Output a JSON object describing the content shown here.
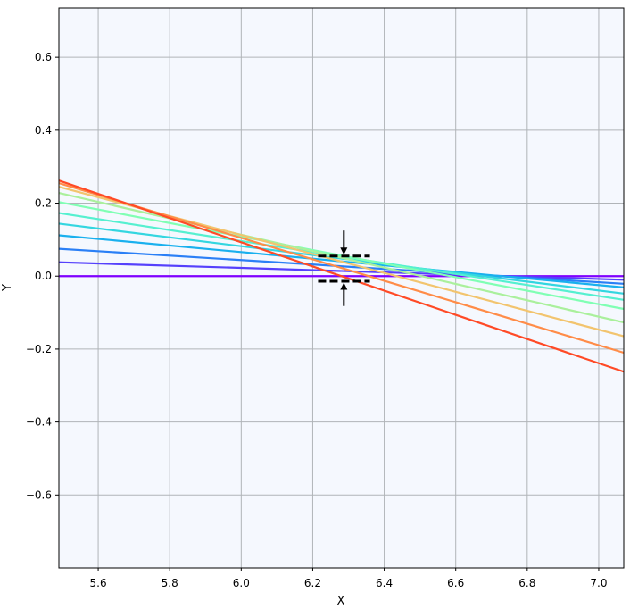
{
  "chart_data": {
    "type": "line",
    "title": "",
    "xlabel": "X",
    "ylabel": "Y",
    "xlim": [
      5.49,
      7.07
    ],
    "ylim": [
      -0.8,
      0.735
    ],
    "xticks": [
      5.6,
      5.8,
      6.0,
      6.2,
      6.4,
      6.6,
      6.8,
      7.0
    ],
    "xtick_labels": [
      "5.6",
      "5.8",
      "6.0",
      "6.2",
      "6.4",
      "6.6",
      "6.8",
      "7.0"
    ],
    "yticks": [
      -0.6,
      -0.4,
      -0.2,
      0.0,
      0.2,
      0.4,
      0.6
    ],
    "ytick_labels": [
      "−0.6",
      "−0.4",
      "−0.2",
      "0.0",
      "0.2",
      "0.4",
      "0.6"
    ],
    "grid": true,
    "background_color": "#f5f8fe",
    "grid_color": "#b0b4b8",
    "series": [
      {
        "color": "#7f00ff",
        "points": [
          [
            5.49,
            0.0
          ],
          [
            7.07,
            0.0
          ]
        ]
      },
      {
        "color": "#5540fc",
        "points": [
          [
            5.49,
            0.038
          ],
          [
            7.07,
            -0.01
          ]
        ]
      },
      {
        "color": "#2a7ff6",
        "points": [
          [
            5.49,
            0.075
          ],
          [
            7.07,
            -0.021
          ]
        ]
      },
      {
        "color": "#19b0ee",
        "points": [
          [
            5.49,
            0.112
          ],
          [
            7.07,
            -0.031
          ]
        ]
      },
      {
        "color": "#33d6e0",
        "points": [
          [
            5.49,
            0.144
          ],
          [
            7.07,
            -0.048
          ]
        ]
      },
      {
        "color": "#55f0d0",
        "points": [
          [
            5.49,
            0.173
          ],
          [
            7.07,
            -0.065
          ]
        ]
      },
      {
        "color": "#80ffb4",
        "points": [
          [
            5.49,
            0.203
          ],
          [
            7.07,
            -0.09
          ]
        ]
      },
      {
        "color": "#aaf09c",
        "points": [
          [
            5.49,
            0.228
          ],
          [
            7.07,
            -0.127
          ]
        ]
      },
      {
        "color": "#f2c46e",
        "points": [
          [
            5.49,
            0.245
          ],
          [
            7.07,
            -0.165
          ]
        ]
      },
      {
        "color": "#ff8c48",
        "points": [
          [
            5.49,
            0.255
          ],
          [
            7.07,
            -0.21
          ]
        ]
      },
      {
        "color": "#ff4a26",
        "points": [
          [
            5.49,
            0.262
          ],
          [
            7.07,
            -0.262
          ]
        ]
      }
    ],
    "annotations": {
      "center_marker": {
        "x": 6.287,
        "y": 0.0
      },
      "dash_lines": [
        {
          "x0": 6.215,
          "x1": 6.36,
          "y": 0.055
        },
        {
          "x0": 6.215,
          "x1": 6.36,
          "y": -0.014
        }
      ],
      "arrows": [
        {
          "x": 6.287,
          "y_from": 0.125,
          "y_to": 0.055
        },
        {
          "x": 6.287,
          "y_from": -0.082,
          "y_to": -0.014
        }
      ],
      "color": "#000000"
    }
  }
}
